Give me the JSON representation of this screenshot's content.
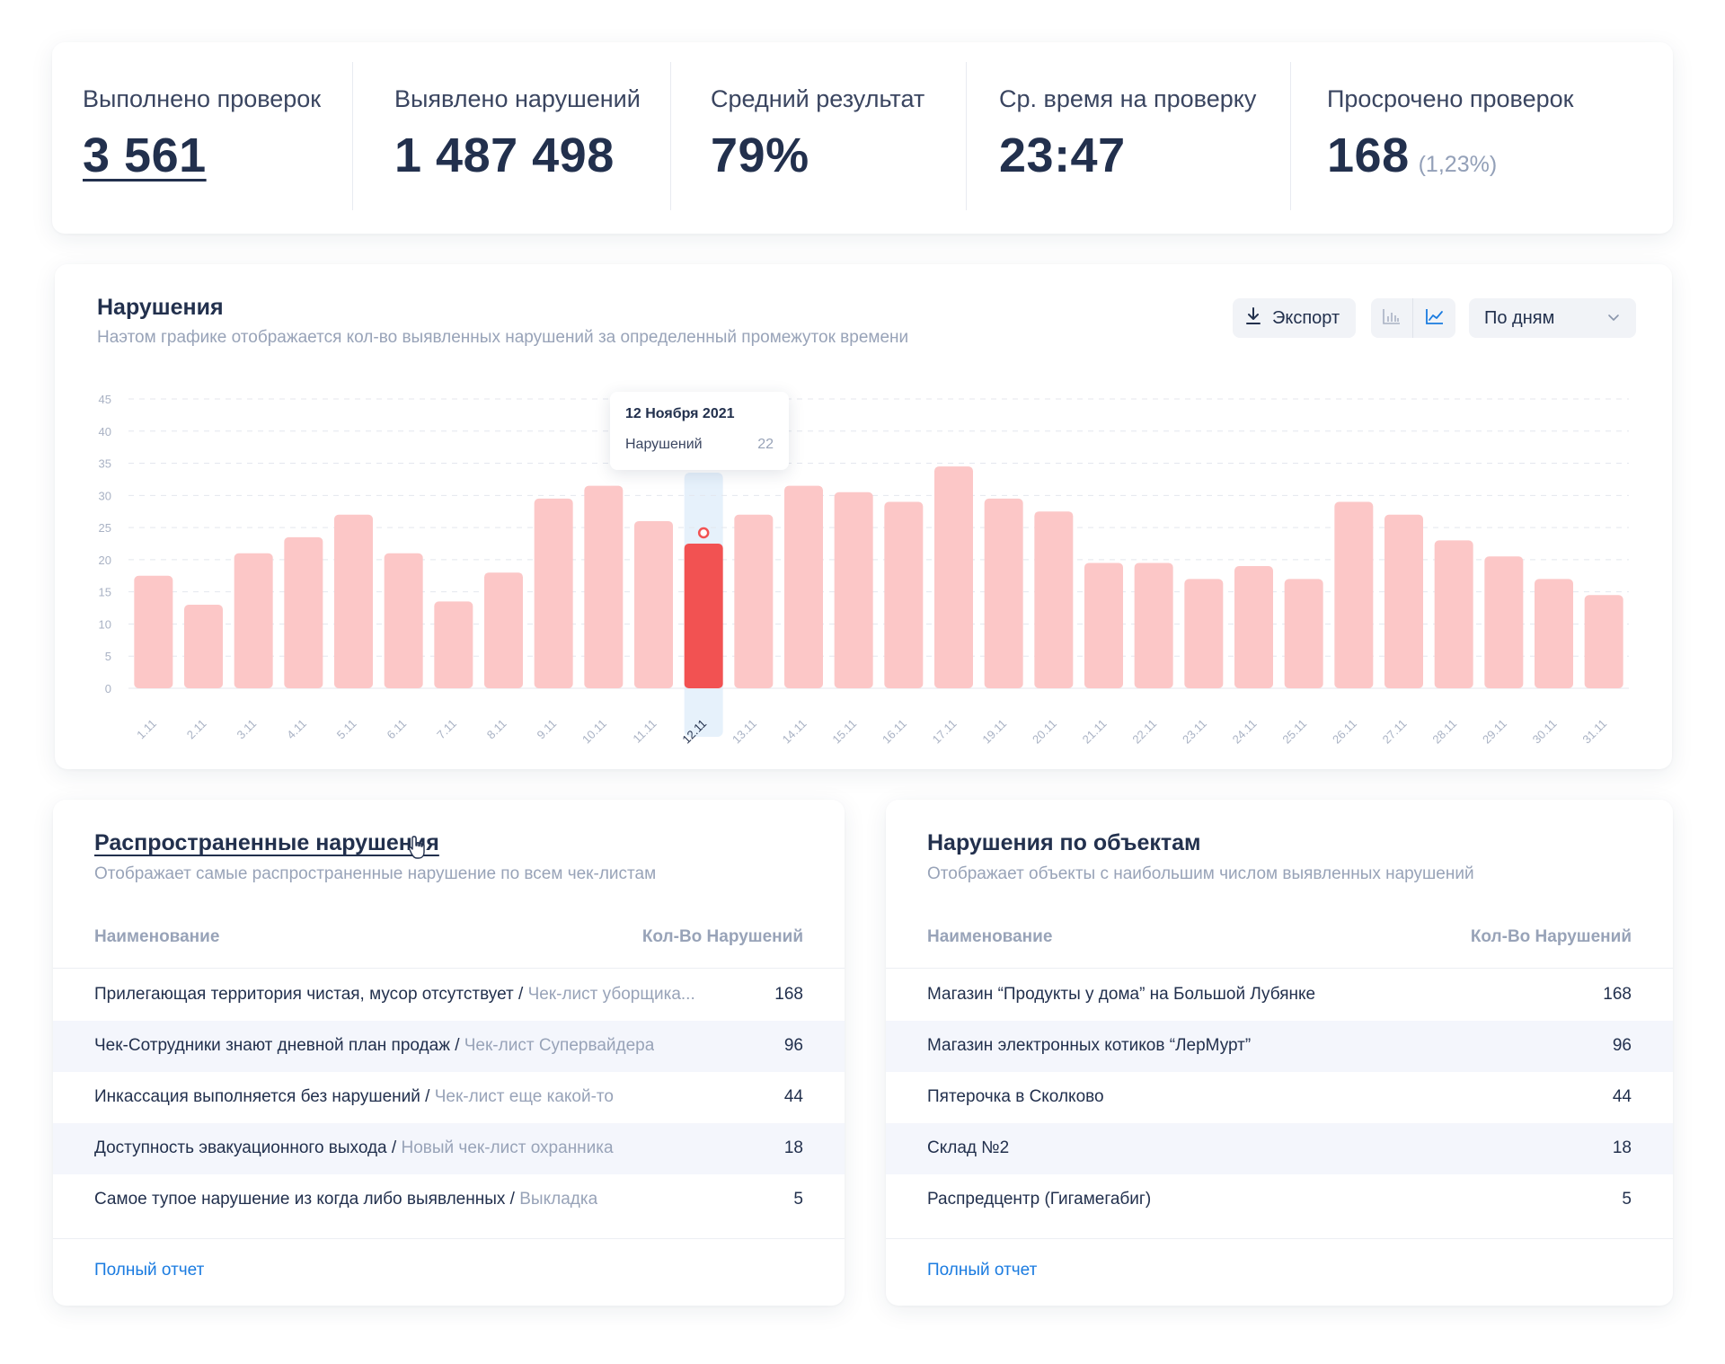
{
  "kpis": [
    {
      "label": "Выполнено проверок",
      "value": "3 561",
      "sub": ""
    },
    {
      "label": "Выявлено нарушений",
      "value": "1 487 498",
      "sub": ""
    },
    {
      "label": "Средний результат",
      "value": "79%",
      "sub": ""
    },
    {
      "label": "Ср. время на проверку",
      "value": "23:47",
      "sub": ""
    },
    {
      "label": "Просрочено проверок",
      "value": "168",
      "sub": "(1,23%)"
    }
  ],
  "chart_card": {
    "title": "Нарушения",
    "subtitle": "Наэтом графике отображается кол-во выявленных нарушений за определенный промежуток времени",
    "export_label": "Экспорт",
    "period_label": "По дням",
    "icons": {
      "export": "download-icon",
      "bar_view": "bar-chart-icon",
      "line_view": "line-chart-icon",
      "dropdown": "chevron-down-icon"
    }
  },
  "tooltip": {
    "date": "12 Ноября 2021",
    "label": "Нарушений",
    "value": "22"
  },
  "chart_data": {
    "type": "bar",
    "categories": [
      "1.11",
      "2.11",
      "3.11",
      "4.11",
      "5.11",
      "6.11",
      "7.11",
      "8.11",
      "9.11",
      "10.11",
      "11.11",
      "12.11",
      "13.11",
      "14.11",
      "15.11",
      "16.11",
      "17.11",
      "19.11",
      "20.11",
      "21.11",
      "22.11",
      "23.11",
      "24.11",
      "25.11",
      "26.11",
      "27.11",
      "28.11",
      "29.11",
      "30.11",
      "31.11"
    ],
    "values": [
      17.5,
      13,
      21,
      23.5,
      27,
      21,
      13.5,
      18,
      29.5,
      31.5,
      26,
      22.5,
      27,
      31.5,
      30.5,
      29,
      34.5,
      29.5,
      27.5,
      19.5,
      19.5,
      17,
      19,
      17,
      29,
      27,
      23,
      20.5,
      17,
      14.5
    ],
    "highlight_category": "12.11",
    "y_ticks": [
      0,
      5,
      10,
      15,
      20,
      25,
      30,
      35,
      40,
      45
    ],
    "ylim": [
      0,
      45
    ],
    "grid": true,
    "colors": {
      "bar": "#fcc7c7",
      "highlight": "#f25252",
      "highlight_band": "#e6f1fb",
      "grid": "#e4e7ee",
      "axis_text": "#a9b2c4"
    }
  },
  "common_violations": {
    "title": "Распространенные нарушения",
    "subtitle": "Отображает самые распространенные нарушение по всем чек-листам",
    "col_name": "Наименование",
    "col_count": "Кол-Во Нарушений",
    "rows": [
      {
        "name": "Прилегающая территория чистая, мусор отсутствует",
        "checklist": "Чек-лист уборщика...",
        "count": "168"
      },
      {
        "name": "Чек-Сотрудники знают дневной план продаж",
        "checklist": "Чек-лист Супервайдера",
        "count": "96"
      },
      {
        "name": "Инкассация выполняется без нарушений",
        "checklist": "Чек-лист еще какой-то",
        "count": "44"
      },
      {
        "name": "Доступность эвакуационного выхода",
        "checklist": "Новый чек-лист охранника",
        "count": "18"
      },
      {
        "name": "Самое тупое нарушение из когда либо выявленных",
        "checklist": "Выкладка",
        "count": "5"
      }
    ],
    "separator": " / ",
    "footer_link": "Полный отчет"
  },
  "objects_violations": {
    "title": "Нарушения по объектам",
    "subtitle": "Отображает объекты с наибольшим числом выявленных нарушений",
    "col_name": "Наименование",
    "col_count": "Кол-Во Нарушений",
    "rows": [
      {
        "name": "Магазин “Продукты у дома” на Большой Лубянке",
        "count": "168"
      },
      {
        "name": "Магазин электронных котиков “ЛерМурт”",
        "count": "96"
      },
      {
        "name": "Пятерочка в Сколково",
        "count": "44"
      },
      {
        "name": "Склад №2",
        "count": "18"
      },
      {
        "name": "Распредцентр (Гигамегабиг)",
        "count": "5"
      }
    ],
    "footer_link": "Полный отчет"
  }
}
